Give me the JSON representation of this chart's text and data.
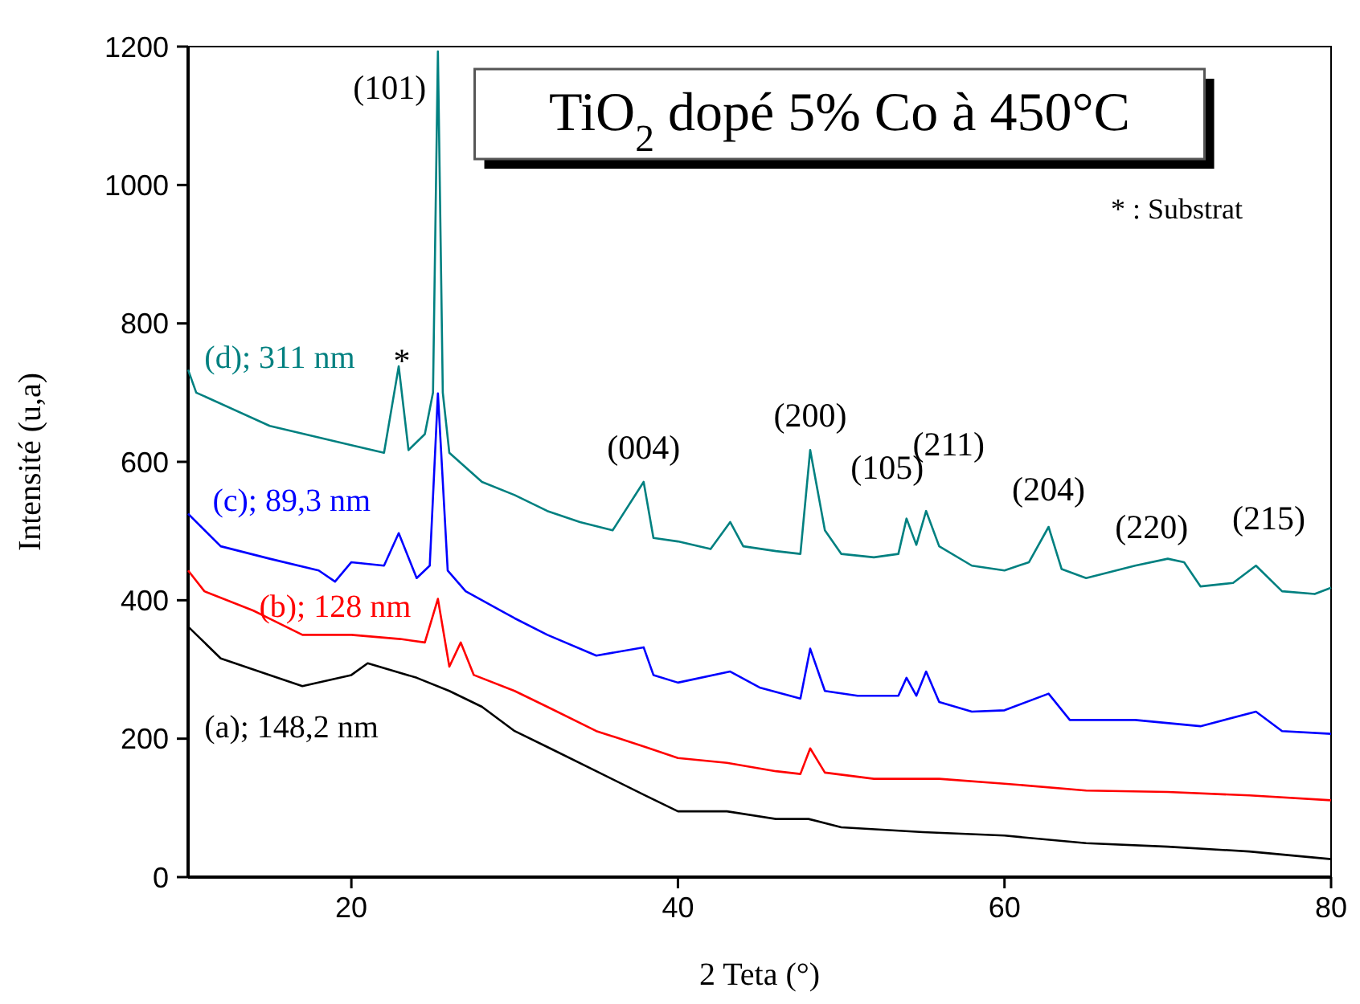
{
  "chart_data": {
    "type": "line",
    "title": "TiO$_{2}$ dopé 5% Co à 450°C",
    "xlabel": "2 Teta (°)",
    "ylabel": "Intensité (u,a)",
    "xlim": [
      10,
      80
    ],
    "ylim": [
      0,
      1200
    ],
    "xticks": [
      20,
      40,
      60,
      80
    ],
    "yticks": [
      0,
      200,
      400,
      600,
      800,
      1000,
      1200
    ],
    "grid": false,
    "marker": "none",
    "line_style": "solid",
    "series": [
      {
        "name": "(a); 148,2 nm",
        "color": "#000000",
        "x": [
          10,
          12,
          15,
          17,
          20,
          21,
          24,
          26,
          28,
          30,
          32,
          35,
          38,
          40,
          43,
          46,
          48,
          50,
          55,
          60,
          65,
          70,
          75,
          80
        ],
        "values": [
          362,
          316,
          292,
          276,
          292,
          309,
          288,
          269,
          246,
          211,
          188,
          153,
          118,
          95,
          95,
          84,
          84,
          72,
          65,
          60,
          49,
          44,
          37,
          26
        ]
      },
      {
        "name": "(b); 128 nm",
        "color": "#ff0000",
        "x": [
          10,
          11,
          14,
          17,
          20,
          23,
          24.5,
          25.3,
          26,
          26.7,
          27.5,
          30,
          32,
          35,
          38,
          40,
          43,
          46,
          47.5,
          48.1,
          49,
          52,
          56,
          60,
          65,
          70,
          75,
          80
        ],
        "values": [
          443,
          413,
          385,
          350,
          350,
          344,
          339,
          402,
          304,
          339,
          292,
          269,
          246,
          211,
          188,
          172,
          165,
          153,
          149,
          186,
          151,
          142,
          142,
          135,
          125,
          123,
          118,
          111
        ]
      },
      {
        "name": "(c); 89,3 nm",
        "color": "#0000ff",
        "x": [
          10,
          12,
          15,
          18,
          19,
          20,
          22,
          22.9,
          24,
          24.8,
          25.3,
          25.9,
          27,
          30,
          32,
          35,
          37.9,
          38.5,
          40,
          43.2,
          45,
          47.5,
          48.1,
          49,
          51,
          53.5,
          54,
          54.6,
          55.2,
          56,
          58,
          60,
          62.7,
          64,
          68,
          72,
          75.4,
          77,
          80
        ],
        "values": [
          525,
          478,
          460,
          443,
          427,
          455,
          450,
          497,
          432,
          450,
          699,
          443,
          413,
          374,
          350,
          320,
          332,
          292,
          281,
          297,
          274,
          258,
          330,
          269,
          262,
          262,
          288,
          262,
          297,
          253,
          239,
          241,
          265,
          227,
          227,
          218,
          239,
          211,
          207
        ]
      },
      {
        "name": "(d); 311 nm",
        "color": "#008080",
        "x": [
          10,
          10.5,
          15,
          20,
          22,
          22.9,
          23.5,
          24.5,
          25,
          25.3,
          25.6,
          26,
          28,
          30,
          32,
          34,
          36,
          37.9,
          38.5,
          40,
          42,
          43.2,
          44,
          46,
          47.5,
          48.1,
          49,
          50,
          52,
          53.5,
          54,
          54.6,
          55.2,
          56,
          58,
          60,
          61.5,
          62.7,
          63.5,
          65,
          68,
          70,
          71,
          72,
          74,
          75.4,
          77,
          79,
          80
        ],
        "values": [
          733,
          700,
          652,
          624,
          613,
          738,
          617,
          640,
          700,
          1193,
          700,
          613,
          571,
          552,
          529,
          513,
          501,
          571,
          490,
          485,
          474,
          513,
          478,
          471,
          467,
          617,
          501,
          467,
          462,
          467,
          518,
          480,
          529,
          478,
          450,
          443,
          455,
          506,
          445,
          432,
          450,
          460,
          455,
          420,
          425,
          450,
          413,
          409,
          418
        ]
      }
    ],
    "annotations": [
      {
        "text": "(101)",
        "x": 25.3,
        "y": 1193
      },
      {
        "text": "*",
        "x": 22.9,
        "y": 738
      },
      {
        "text": "(004)",
        "x": 37.9,
        "y": 571
      },
      {
        "text": "(200)",
        "x": 48.1,
        "y": 617
      },
      {
        "text": "(105)",
        "x": 54,
        "y": 518
      },
      {
        "text": "(211)",
        "x": 55.2,
        "y": 529
      },
      {
        "text": "(204)",
        "x": 62.7,
        "y": 506
      },
      {
        "text": "(220)",
        "x": 70,
        "y": 460
      },
      {
        "text": "(215)",
        "x": 75.4,
        "y": 450
      },
      "* : Substrat"
    ]
  }
}
